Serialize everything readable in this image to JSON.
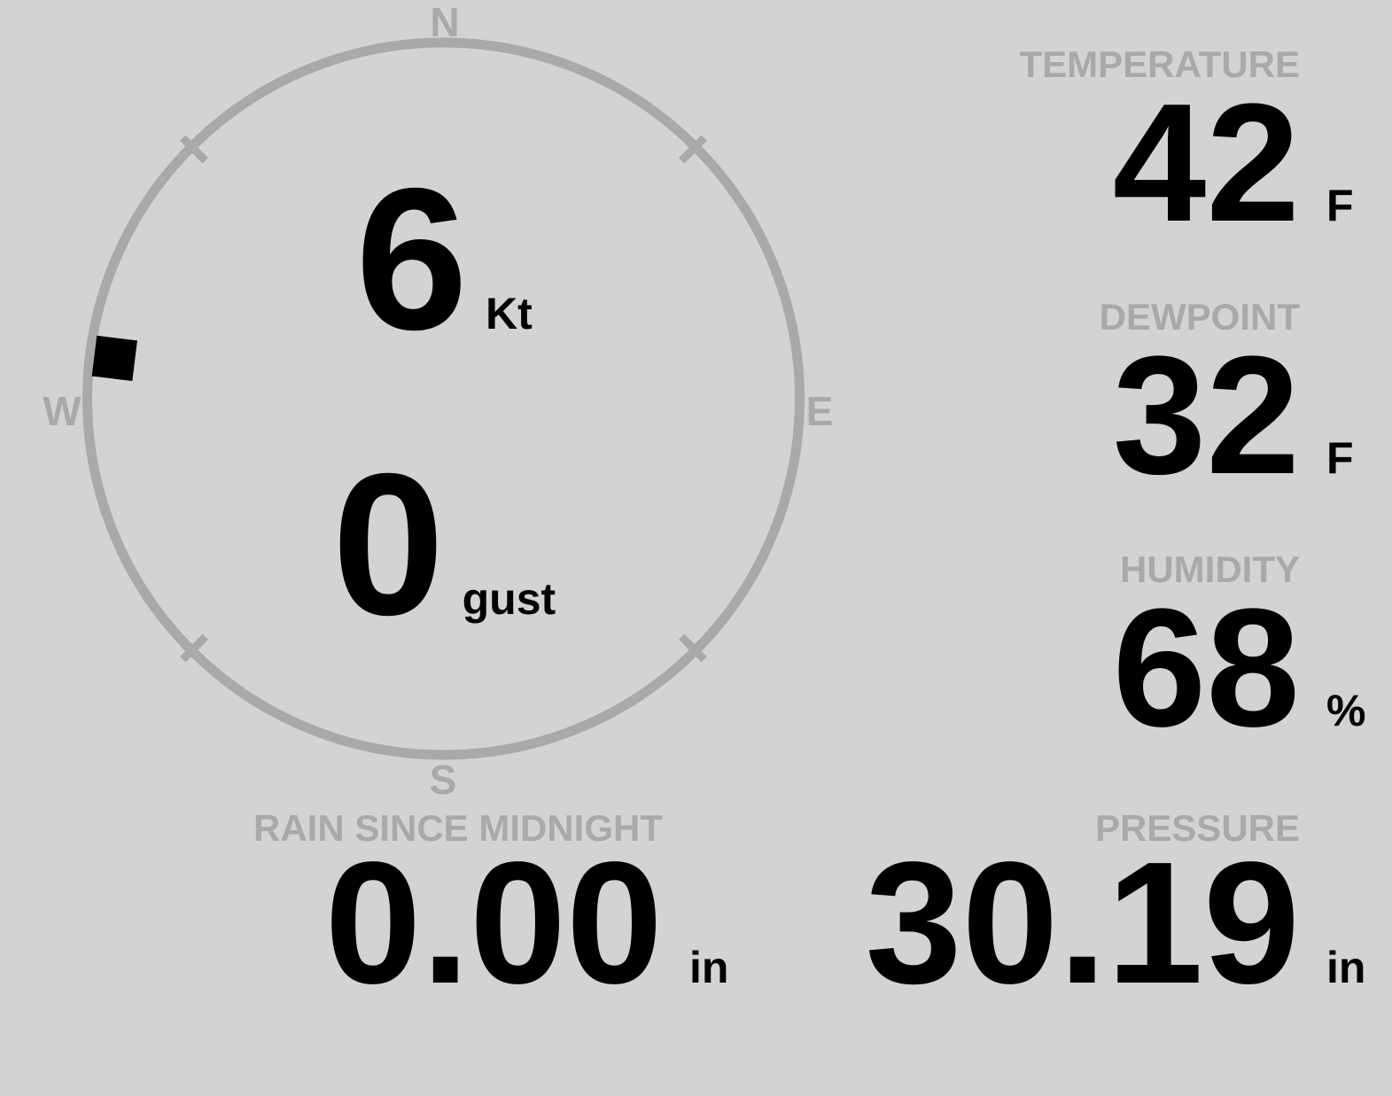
{
  "display": {
    "background_color": "#d3d3d3",
    "muted_color": "#a9a9a9",
    "text_color": "#000000"
  },
  "compass": {
    "cardinals": {
      "north": "N",
      "east": "E",
      "south": "S",
      "west": "W"
    },
    "wind_speed": {
      "value": "6",
      "unit": "Kt"
    },
    "wind_gust": {
      "value": "0",
      "unit": "gust"
    },
    "wind_direction_deg": 277,
    "tick_bearings_deg": [
      45,
      135,
      225,
      315
    ]
  },
  "metrics": {
    "temperature": {
      "label": "TEMPERATURE",
      "value": "42",
      "unit": "F"
    },
    "dewpoint": {
      "label": "DEWPOINT",
      "value": "32",
      "unit": "F"
    },
    "humidity": {
      "label": "HUMIDITY",
      "value": "68",
      "unit": "%"
    },
    "rain_since_midnight": {
      "label": "RAIN SINCE MIDNIGHT",
      "value": "0.00",
      "unit": "in"
    },
    "pressure": {
      "label": "PRESSURE",
      "value": "30.19",
      "unit": "in"
    }
  }
}
